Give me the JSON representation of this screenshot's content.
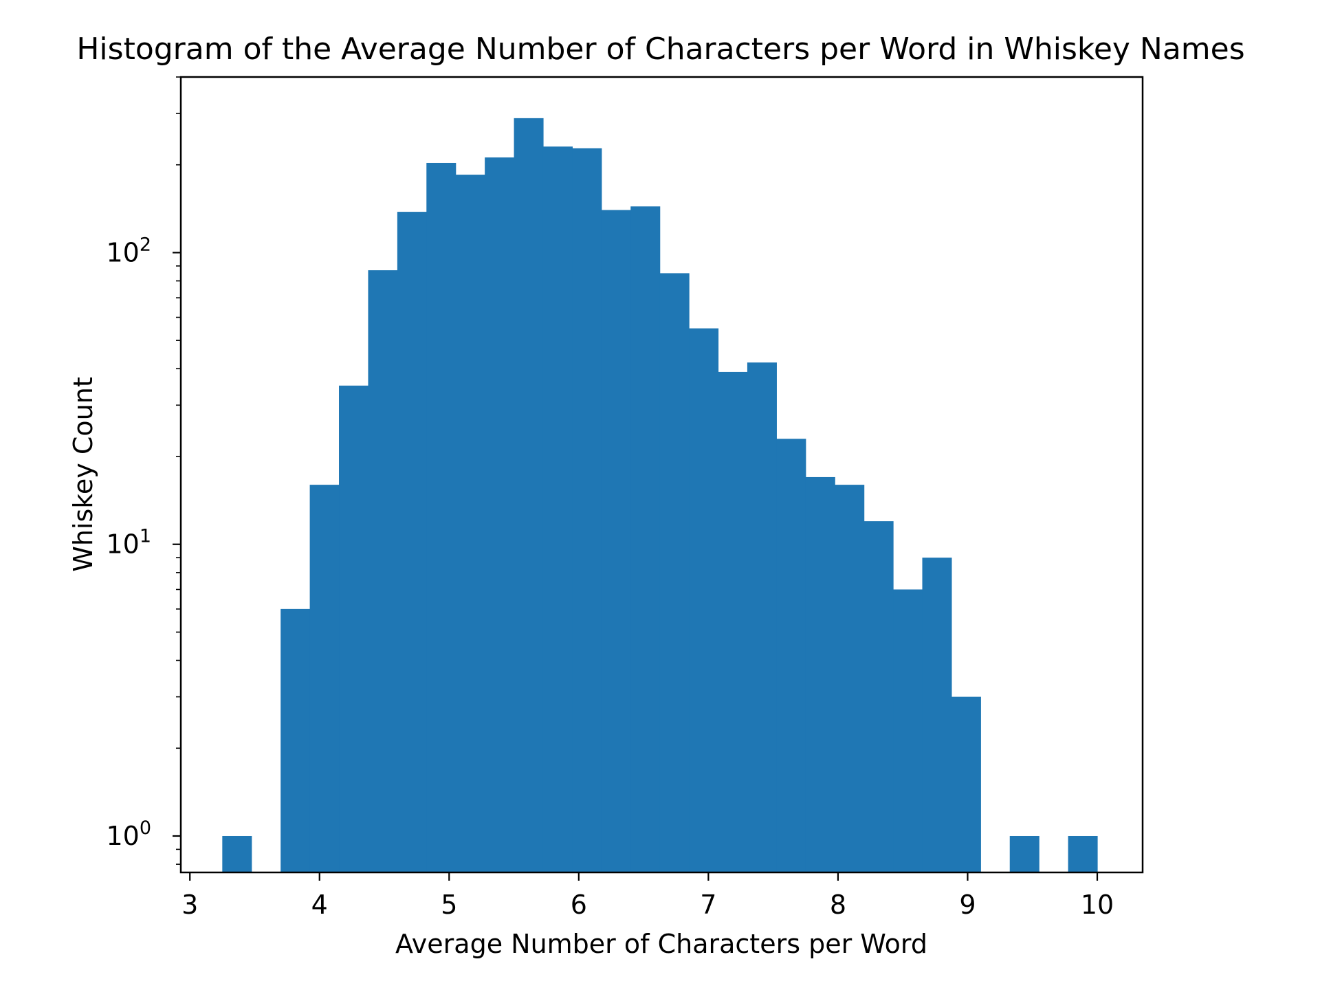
{
  "chart_data": {
    "type": "bar",
    "title": "Histogram of the Average Number of Characters per Word in Whiskey Names",
    "xlabel": "Average Number of Characters per Word",
    "ylabel": "Whiskey Count",
    "yscale": "log",
    "xlim": [
      2.93,
      10.35
    ],
    "ylim": [
      0.75,
      400
    ],
    "x_ticks": [
      3,
      4,
      5,
      6,
      7,
      8,
      9,
      10
    ],
    "y_ticks": [
      {
        "value": 1,
        "base": "10",
        "exp": "0"
      },
      {
        "value": 10,
        "base": "10",
        "exp": "1"
      },
      {
        "value": 100,
        "base": "10",
        "exp": "2"
      }
    ],
    "bar_color": "#1f77b4",
    "grid": false,
    "bins": [
      {
        "x0": 3.25,
        "x1": 3.475,
        "count": 1
      },
      {
        "x0": 3.475,
        "x1": 3.7,
        "count": 0
      },
      {
        "x0": 3.7,
        "x1": 3.925,
        "count": 6
      },
      {
        "x0": 3.925,
        "x1": 4.15,
        "count": 16
      },
      {
        "x0": 4.15,
        "x1": 4.375,
        "count": 35
      },
      {
        "x0": 4.375,
        "x1": 4.6,
        "count": 87
      },
      {
        "x0": 4.6,
        "x1": 4.825,
        "count": 138
      },
      {
        "x0": 4.825,
        "x1": 5.05,
        "count": 203
      },
      {
        "x0": 5.05,
        "x1": 5.275,
        "count": 185
      },
      {
        "x0": 5.275,
        "x1": 5.5,
        "count": 212
      },
      {
        "x0": 5.5,
        "x1": 5.725,
        "count": 289
      },
      {
        "x0": 5.725,
        "x1": 5.95,
        "count": 231
      },
      {
        "x0": 5.95,
        "x1": 6.175,
        "count": 228
      },
      {
        "x0": 6.175,
        "x1": 6.4,
        "count": 140
      },
      {
        "x0": 6.4,
        "x1": 6.625,
        "count": 144
      },
      {
        "x0": 6.625,
        "x1": 6.85,
        "count": 85
      },
      {
        "x0": 6.85,
        "x1": 7.075,
        "count": 55
      },
      {
        "x0": 7.075,
        "x1": 7.3,
        "count": 39
      },
      {
        "x0": 7.3,
        "x1": 7.525,
        "count": 42
      },
      {
        "x0": 7.525,
        "x1": 7.75,
        "count": 23
      },
      {
        "x0": 7.75,
        "x1": 7.975,
        "count": 17
      },
      {
        "x0": 7.975,
        "x1": 8.2,
        "count": 16
      },
      {
        "x0": 8.2,
        "x1": 8.425,
        "count": 12
      },
      {
        "x0": 8.425,
        "x1": 8.65,
        "count": 7
      },
      {
        "x0": 8.65,
        "x1": 8.875,
        "count": 9
      },
      {
        "x0": 8.875,
        "x1": 9.1,
        "count": 3
      },
      {
        "x0": 9.1,
        "x1": 9.325,
        "count": 0
      },
      {
        "x0": 9.325,
        "x1": 9.55,
        "count": 1
      },
      {
        "x0": 9.55,
        "x1": 9.775,
        "count": 0
      },
      {
        "x0": 9.775,
        "x1": 10.0,
        "count": 1
      }
    ]
  }
}
